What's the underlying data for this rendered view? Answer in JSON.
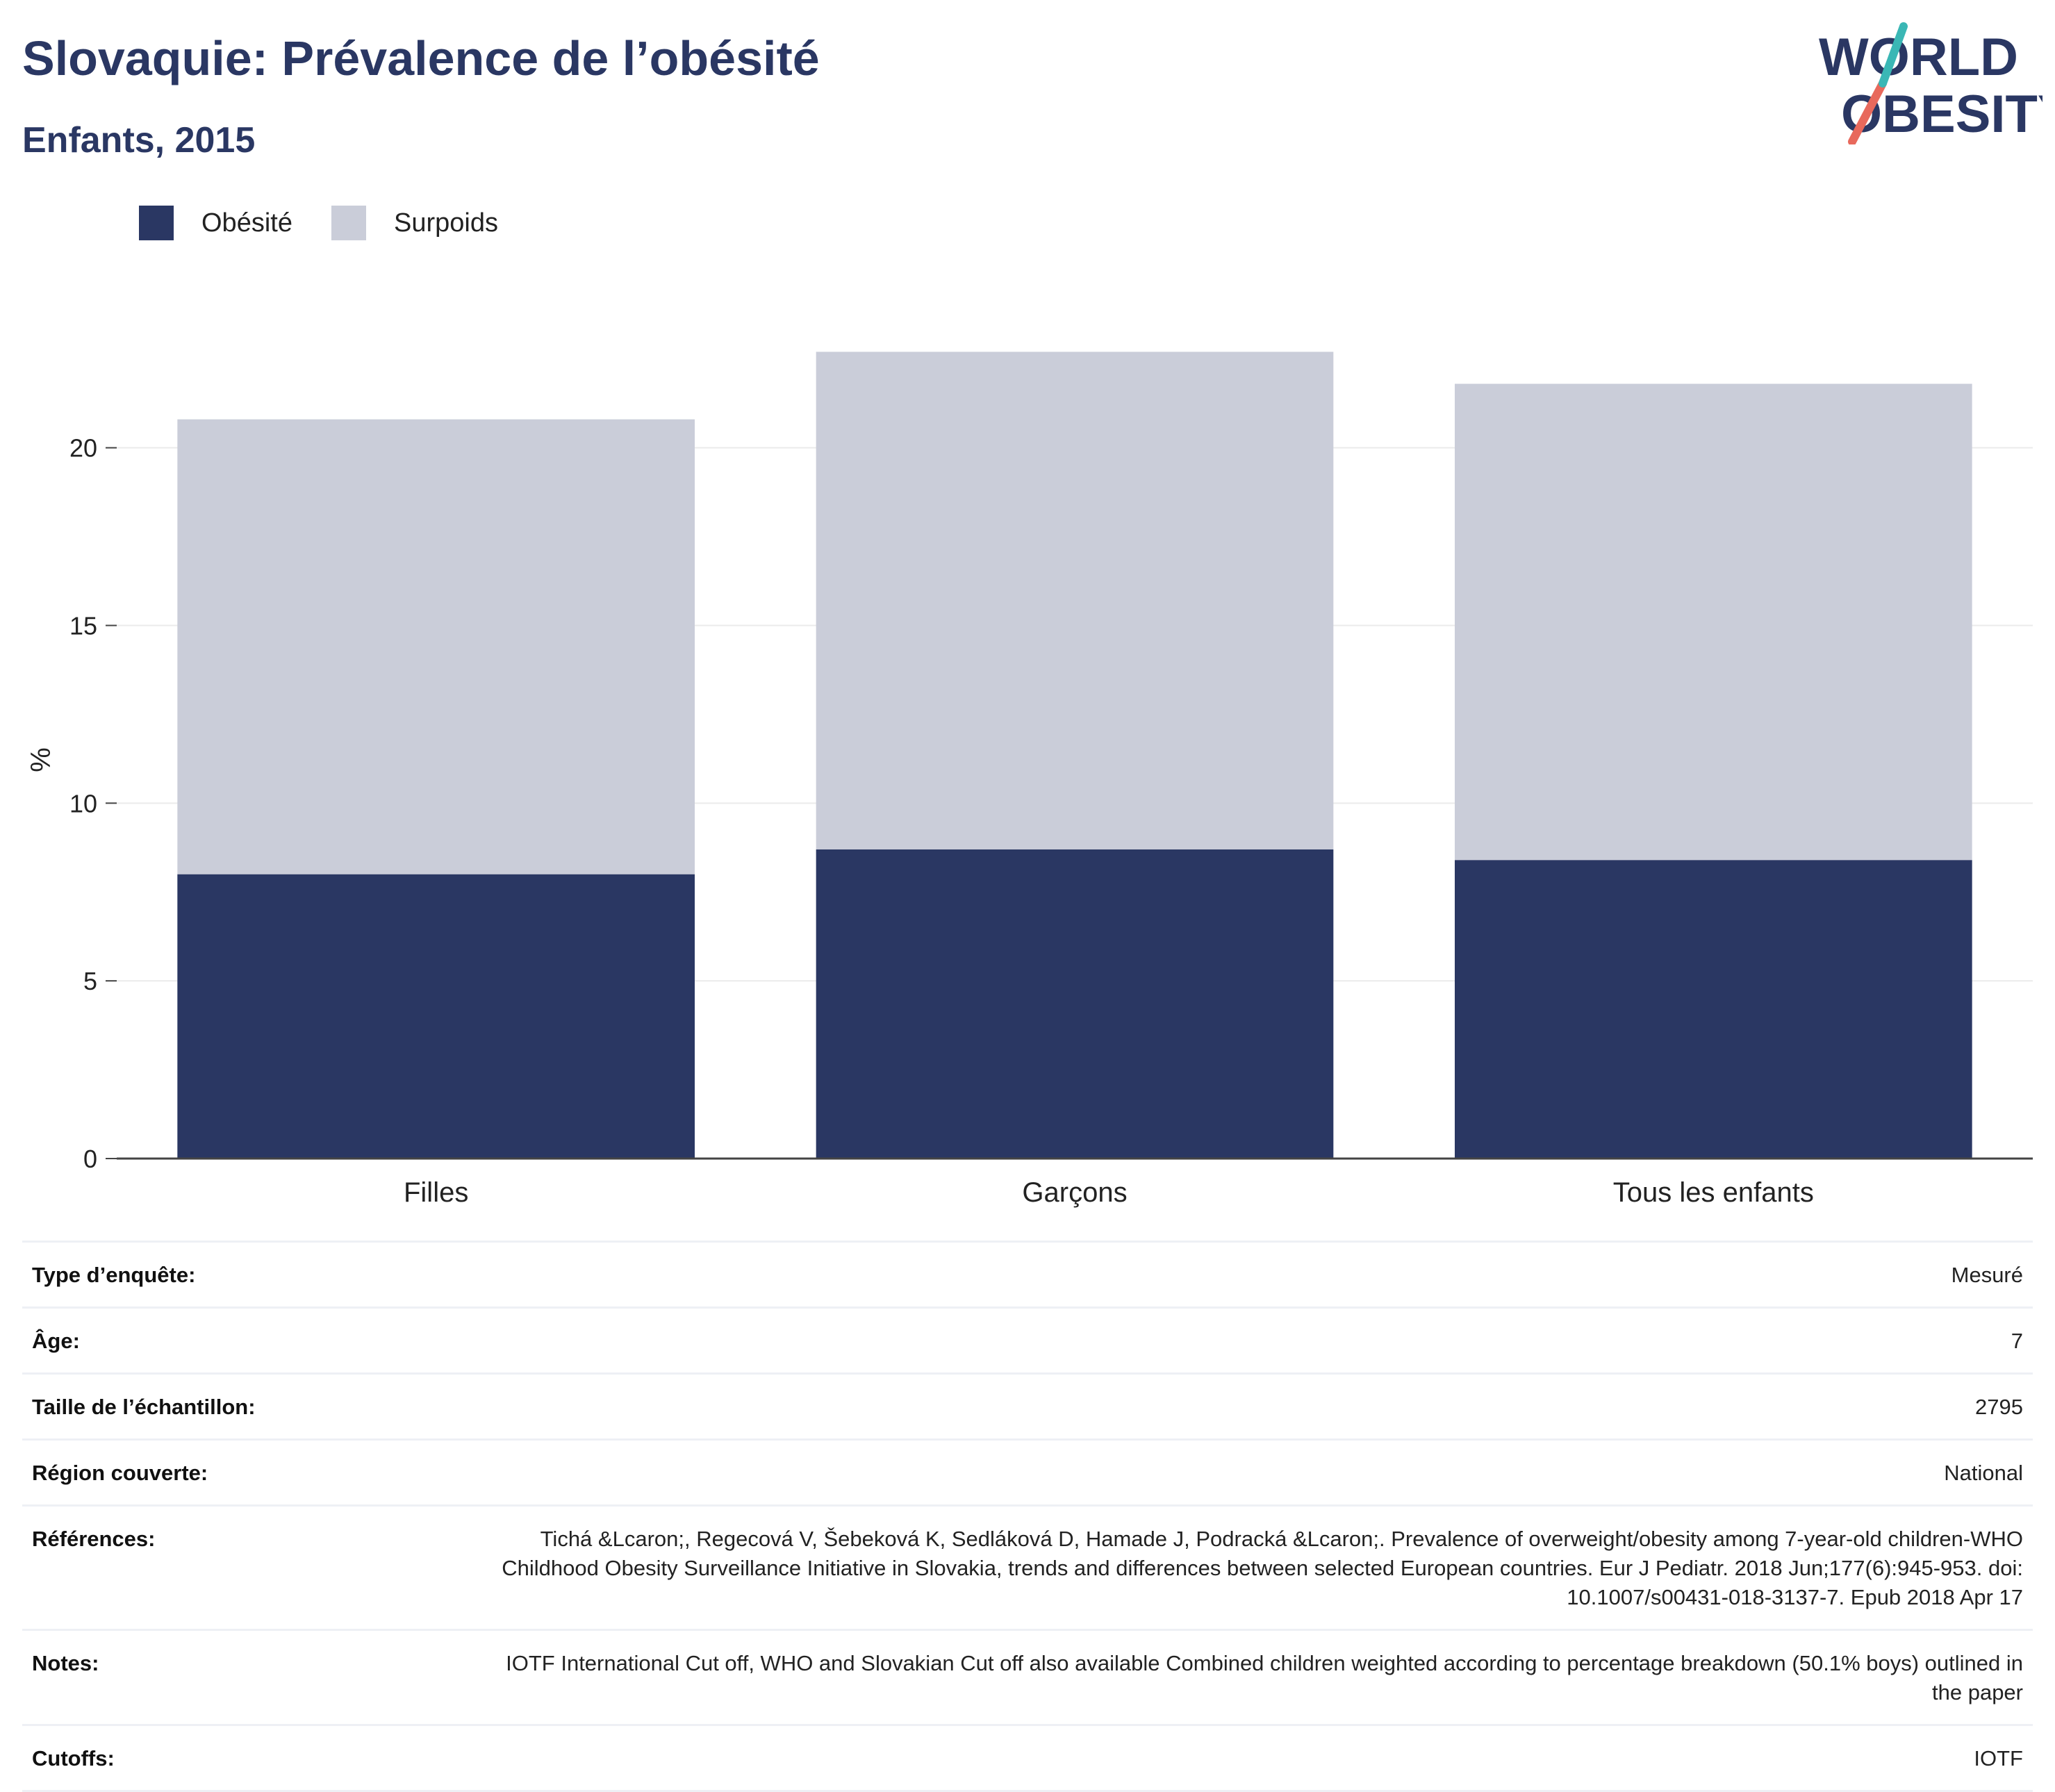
{
  "header": {
    "title": "Slovaquie: Prévalence de l’obésité",
    "subtitle": "Enfants, 2015"
  },
  "logo": {
    "line1": "WORLD",
    "line2": "OBESITY",
    "colors": {
      "text": "#2a3763",
      "slash_top": "#3ab7b5",
      "slash_bottom": "#e8695c"
    }
  },
  "legend": {
    "items": [
      {
        "label": "Obésité",
        "color": "#2a3763"
      },
      {
        "label": "Surpoids",
        "color": "#cacdd9"
      }
    ]
  },
  "chart_data": {
    "type": "bar",
    "stacked": true,
    "categories": [
      "Filles",
      "Garçons",
      "Tous les enfants"
    ],
    "series": [
      {
        "name": "Obésité",
        "values": [
          8.0,
          8.7,
          8.4
        ],
        "color": "#2a3763"
      },
      {
        "name": "Surpoids",
        "values": [
          12.8,
          14.0,
          13.4
        ],
        "color": "#cacdd9"
      }
    ],
    "ylabel": "%",
    "ylim": [
      0,
      24
    ],
    "yticks": [
      0,
      5,
      10,
      15,
      20
    ],
    "grid": true,
    "legend_position": "top-left"
  },
  "info": {
    "rows": [
      {
        "key": "Type d’enquête:",
        "value": "Mesuré"
      },
      {
        "key": "Âge:",
        "value": "7"
      },
      {
        "key": "Taille de l’échantillon:",
        "value": "2795"
      },
      {
        "key": "Région couverte:",
        "value": "National"
      },
      {
        "key": "Références:",
        "value": "Tichá &Lcaron;, Regecová V, Šebeková K, Sedláková D, Hamade J, Podracká &Lcaron;. Prevalence of overweight/obesity among 7-year-old children-WHO Childhood Obesity Surveillance Initiative in Slovakia, trends and differences between selected European countries. Eur J Pediatr. 2018 Jun;177(6):945-953. doi: 10.1007/s00431-018-3137-7. Epub 2018 Apr 17"
      },
      {
        "key": "Notes:",
        "value": "IOTF International Cut off, WHO and Slovakian Cut off also available Combined children weighted according to percentage breakdown (50.1% boys) outlined in the paper"
      },
      {
        "key": "Cutoffs:",
        "value": "IOTF"
      }
    ]
  }
}
